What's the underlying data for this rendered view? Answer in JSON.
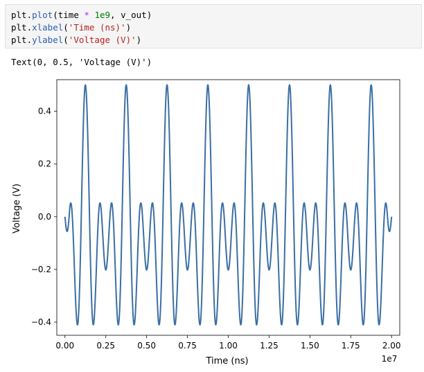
{
  "code_cell": {
    "lines": [
      [
        {
          "t": "plt",
          "c": "var"
        },
        {
          "t": ".",
          "c": "var"
        },
        {
          "t": "plot",
          "c": "fn"
        },
        {
          "t": "(time ",
          "c": "var"
        },
        {
          "t": "*",
          "c": "op"
        },
        {
          "t": " ",
          "c": "var"
        },
        {
          "t": "1e9",
          "c": "num"
        },
        {
          "t": ", v_out)",
          "c": "var"
        }
      ],
      [
        {
          "t": "plt",
          "c": "var"
        },
        {
          "t": ".",
          "c": "var"
        },
        {
          "t": "xlabel",
          "c": "fn"
        },
        {
          "t": "(",
          "c": "var"
        },
        {
          "t": "'Time (ns)'",
          "c": "str"
        },
        {
          "t": ")",
          "c": "var"
        }
      ],
      [
        {
          "t": "plt",
          "c": "var"
        },
        {
          "t": ".",
          "c": "var"
        },
        {
          "t": "ylabel",
          "c": "fn"
        },
        {
          "t": "(",
          "c": "var"
        },
        {
          "t": "'Voltage (V)'",
          "c": "str"
        },
        {
          "t": ")",
          "c": "var"
        }
      ]
    ]
  },
  "output": {
    "text": "Text(0, 0.5, 'Voltage (V)')"
  },
  "chart_data": {
    "type": "line",
    "xlabel": "Time (ns)",
    "ylabel": "Voltage (V)",
    "x_offset_label": "1e7",
    "xlim": [
      -0.5,
      20.5
    ],
    "ylim": [
      -0.45,
      0.52
    ],
    "x_ticks": [
      0.0,
      2.5,
      5.0,
      7.5,
      10.0,
      12.5,
      15.0,
      17.5,
      20.0
    ],
    "x_tick_labels": [
      "0.00",
      "0.25",
      "0.50",
      "0.75",
      "1.00",
      "1.25",
      "1.50",
      "1.75",
      "2.00"
    ],
    "y_ticks": [
      -0.4,
      -0.2,
      0.0,
      0.2,
      0.4
    ],
    "y_tick_labels": [
      "−0.4",
      "−0.2",
      "0.0",
      "0.2",
      "0.4"
    ],
    "series_color": "#3a6ea5",
    "series": [
      {
        "x": [
          0,
          0.625,
          1.25,
          1.875,
          2.5,
          3.125,
          3.75,
          4.375,
          5,
          5.625,
          6.25,
          6.875,
          7.5,
          8.125,
          8.75,
          9.375,
          10,
          10.625,
          11.25,
          11.875,
          12.5,
          13.125,
          13.75,
          14.375,
          15,
          15.625,
          16.25,
          16.875,
          17.5,
          18.125,
          18.75,
          19.375,
          20
        ],
        "y": [
          0,
          0.177,
          0.5,
          0.177,
          0,
          -0.177,
          0.5,
          -0.177,
          0,
          0.177,
          0.5,
          0.177,
          0,
          -0.177,
          0.5,
          -0.177,
          0,
          0.177,
          0.5,
          0.177,
          0,
          -0.177,
          0.5,
          -0.177,
          0,
          0.177,
          0.5,
          0.177,
          0,
          -0.177,
          0.5,
          -0.177,
          0
        ]
      }
    ],
    "signal": {
      "fundamental_period_x": 2.5,
      "peak": 0.5,
      "trough": -0.41,
      "shoulder": 0.177
    }
  }
}
